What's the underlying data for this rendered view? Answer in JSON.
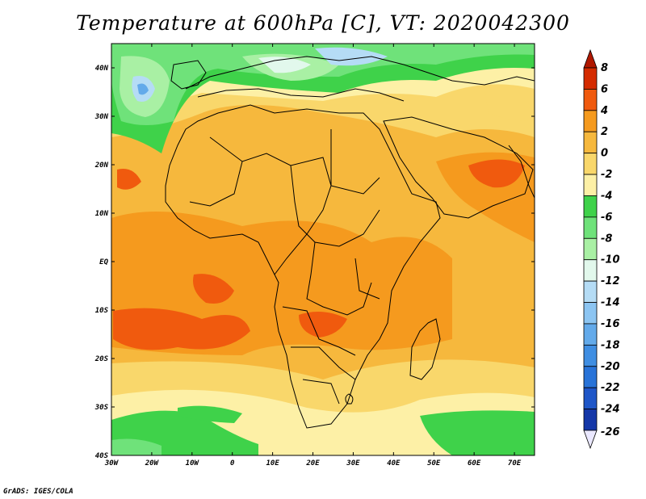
{
  "title": "Temperature at 600hPa [C], VT: 2020042300",
  "credit": "GrADS: IGES/COLA",
  "map": {
    "extent": {
      "lon": [
        -30,
        75
      ],
      "lat": [
        -40,
        45
      ]
    },
    "lat_labels": [
      {
        "value": 40,
        "text": "40N"
      },
      {
        "value": 30,
        "text": "30N"
      },
      {
        "value": 20,
        "text": "20N"
      },
      {
        "value": 10,
        "text": "10N"
      },
      {
        "value": 0,
        "text": "EQ"
      },
      {
        "value": -10,
        "text": "10S"
      },
      {
        "value": -20,
        "text": "20S"
      },
      {
        "value": -30,
        "text": "30S"
      },
      {
        "value": -40,
        "text": "40S"
      }
    ],
    "lon_labels": [
      {
        "value": -30,
        "text": "30W"
      },
      {
        "value": -20,
        "text": "20W"
      },
      {
        "value": -10,
        "text": "10W"
      },
      {
        "value": 0,
        "text": "0"
      },
      {
        "value": 10,
        "text": "10E"
      },
      {
        "value": 20,
        "text": "20E"
      },
      {
        "value": 30,
        "text": "30E"
      },
      {
        "value": 40,
        "text": "40E"
      },
      {
        "value": 50,
        "text": "50E"
      },
      {
        "value": 60,
        "text": "60E"
      },
      {
        "value": 70,
        "text": "70E"
      }
    ]
  },
  "colorbar": {
    "levels": [
      {
        "value": 8,
        "label": "8",
        "color": "#d42b00"
      },
      {
        "value": 6,
        "label": "6",
        "color": "#f05a0e"
      },
      {
        "value": 4,
        "label": "4",
        "color": "#f59a1e"
      },
      {
        "value": 2,
        "label": "2",
        "color": "#f6b83d"
      },
      {
        "value": 0,
        "label": "0",
        "color": "#f9d76b"
      },
      {
        "value": -2,
        "label": "-2",
        "color": "#fdf0a6"
      },
      {
        "value": -4,
        "label": "-4",
        "color": "#3fd24a"
      },
      {
        "value": -6,
        "label": "-6",
        "color": "#6fe27a"
      },
      {
        "value": -8,
        "label": "-8",
        "color": "#a9f0a4"
      },
      {
        "value": -10,
        "label": "-10",
        "color": "#e2f8ec"
      },
      {
        "value": -12,
        "label": "-12",
        "color": "#b5dcf5"
      },
      {
        "value": -14,
        "label": "-14",
        "color": "#8cc5f2"
      },
      {
        "value": -16,
        "label": "-16",
        "color": "#63aaea"
      },
      {
        "value": -18,
        "label": "-18",
        "color": "#3f8ee2"
      },
      {
        "value": -20,
        "label": "-20",
        "color": "#2873d8"
      },
      {
        "value": -22,
        "label": "-22",
        "color": "#1e56c8"
      },
      {
        "value": -24,
        "label": "-24",
        "color": "#1437a8"
      },
      {
        "value": -26,
        "label": "-26",
        "color": "#eae8ff"
      }
    ],
    "top_color": "#b01800",
    "bottom_color": "#0e1a7a"
  }
}
